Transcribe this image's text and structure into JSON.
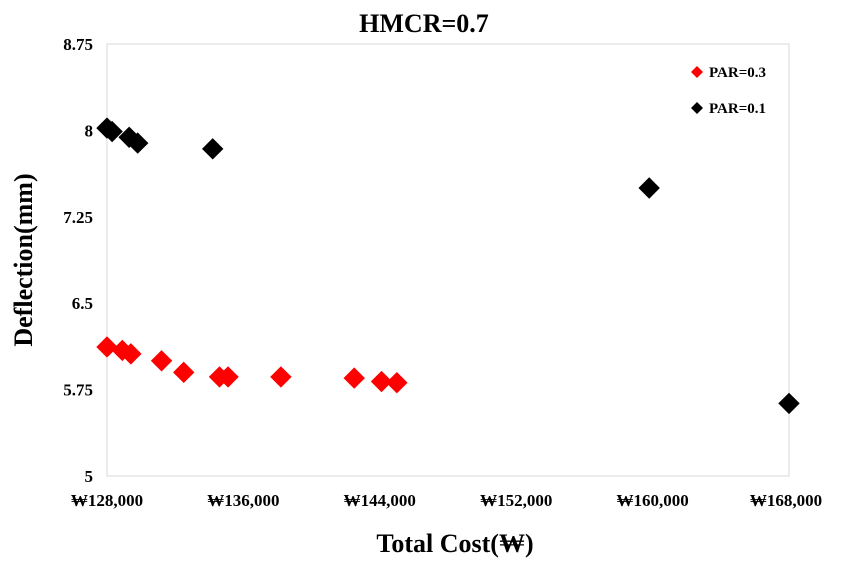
{
  "chart_data": {
    "type": "scatter",
    "title": "HMCR=0.7",
    "xlabel": "Total Cost(₩)",
    "ylabel": "Deflection(mm)",
    "xlim": [
      128000,
      168000
    ],
    "ylim": [
      5,
      8.75
    ],
    "x_ticks": [
      128000,
      136000,
      144000,
      152000,
      160000,
      168000
    ],
    "x_tick_labels": [
      "₩128,000",
      "₩136,000",
      "₩144,000",
      "₩152,000",
      "₩160,000",
      "₩168,000"
    ],
    "y_ticks": [
      5,
      5.75,
      6.5,
      7.25,
      8,
      8.75
    ],
    "y_tick_labels": [
      "5",
      "5.75",
      "6.5",
      "7.25",
      "8",
      "8.75"
    ],
    "grid": false,
    "legend_position": "top-right",
    "series": [
      {
        "name": "PAR=0.3",
        "color": "#ff0000",
        "marker": "diamond",
        "points": [
          [
            128000,
            6.12
          ],
          [
            128900,
            6.09
          ],
          [
            129400,
            6.06
          ],
          [
            131200,
            6.0
          ],
          [
            132500,
            5.9
          ],
          [
            134600,
            5.86
          ],
          [
            135100,
            5.86
          ],
          [
            138200,
            5.86
          ],
          [
            142500,
            5.85
          ],
          [
            144100,
            5.82
          ],
          [
            145000,
            5.81
          ]
        ]
      },
      {
        "name": "PAR=0.1",
        "color": "#000000",
        "marker": "diamond",
        "points": [
          [
            128000,
            8.02
          ],
          [
            128300,
            7.99
          ],
          [
            129300,
            7.94
          ],
          [
            129800,
            7.89
          ],
          [
            134200,
            7.84
          ],
          [
            159800,
            7.5
          ],
          [
            168000,
            5.63
          ]
        ]
      }
    ]
  }
}
